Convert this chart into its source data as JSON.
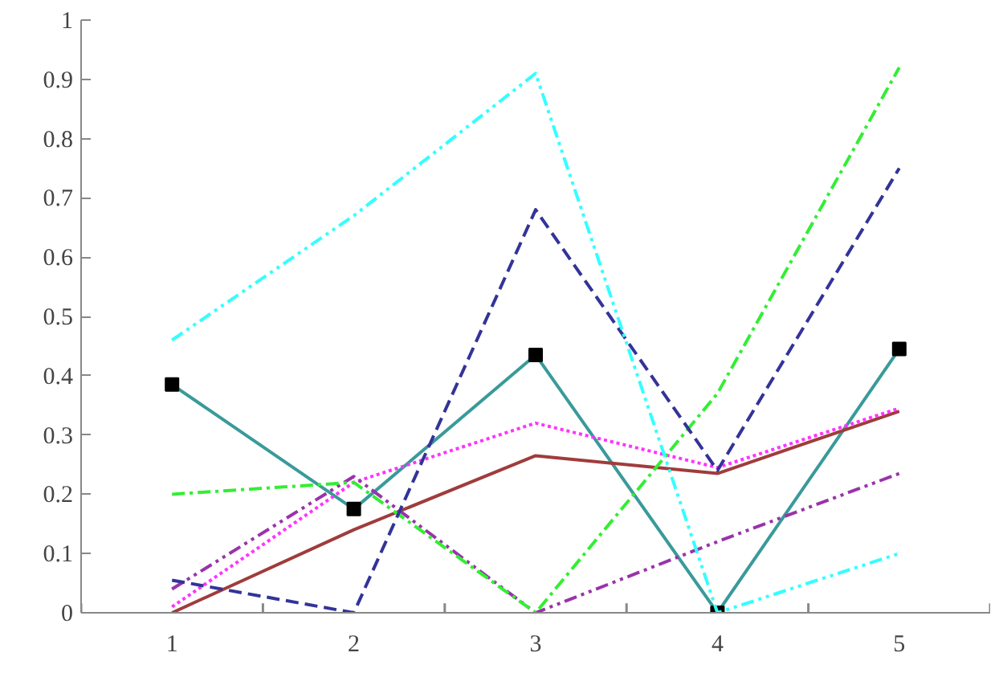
{
  "chart_data": {
    "type": "line",
    "x": [
      1,
      2,
      3,
      4,
      5
    ],
    "xlim": [
      0.5,
      5.5
    ],
    "xticks": [
      {
        "value": 0.5,
        "label": null
      },
      1,
      {
        "value": 1.5,
        "label": null
      },
      2,
      {
        "value": 2.5,
        "label": null
      },
      3,
      {
        "value": 3.5,
        "label": null
      },
      4,
      {
        "value": 4.5,
        "label": null
      },
      5,
      {
        "value": 5.5,
        "label": null
      }
    ],
    "ylim": [
      0,
      1
    ],
    "yticks": [
      0,
      0.1,
      0.2,
      0.3,
      0.4,
      0.5,
      0.6,
      0.7,
      0.8,
      0.9,
      1
    ],
    "grid": false,
    "series": [
      {
        "color": "#3a9a9a",
        "values": [
          0.385,
          0.175,
          0.435,
          0,
          0.445
        ],
        "marker": "square",
        "line_style": "solid"
      },
      {
        "color": "#a03c3c",
        "values": [
          0,
          0.14,
          0.265,
          0.235,
          0.34
        ],
        "marker": "none",
        "line_style": "solid"
      },
      {
        "color": "#ff33ff",
        "values": [
          0.01,
          0.22,
          0.32,
          0.245,
          0.345
        ],
        "marker": "none",
        "line_style": "dotted"
      },
      {
        "color": "#9933aa",
        "values": [
          0.04,
          0.23,
          0,
          0.12,
          0.235
        ],
        "marker": "none",
        "line_style": "dashdotdot"
      },
      {
        "color": "#33ee33",
        "values": [
          0.2,
          0.22,
          0,
          0.37,
          0.92
        ],
        "marker": "none",
        "line_style": "dashdot"
      },
      {
        "color": "#333399",
        "values": [
          0.055,
          0,
          0.68,
          0.24,
          0.75
        ],
        "marker": "none",
        "line_style": "dashed"
      },
      {
        "color": "#33ffff",
        "values": [
          0.46,
          0.67,
          0.91,
          0,
          0.1
        ],
        "marker": "none",
        "line_style": "dashdotdot"
      }
    ]
  }
}
